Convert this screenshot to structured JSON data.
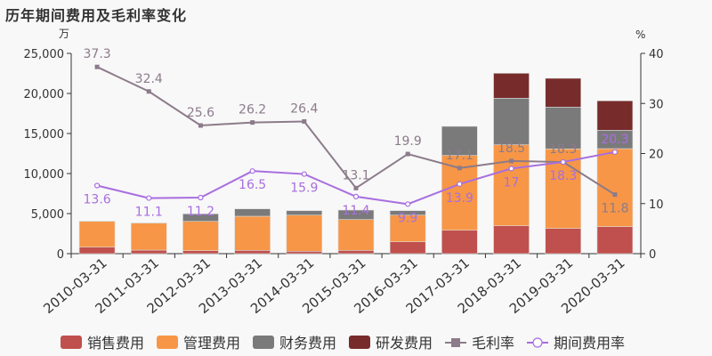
{
  "title": "历年期间费用及毛利率变化",
  "chart_data": {
    "type": "bar",
    "title": "历年期间费用及毛利率变化",
    "categories": [
      "2010-03-31",
      "2011-03-31",
      "2012-03-31",
      "2013-03-31",
      "2014-03-31",
      "2015-03-31",
      "2016-03-31",
      "2017-03-31",
      "2018-03-31",
      "2019-03-31",
      "2020-03-31"
    ],
    "y_left": {
      "unit": "万",
      "range": [
        0,
        25000
      ],
      "ticks": [
        "0",
        "5,000",
        "10,000",
        "15,000",
        "20,000",
        "25,000"
      ]
    },
    "y_right": {
      "unit": "%",
      "range": [
        0,
        40
      ],
      "ticks": [
        "0",
        "10",
        "20",
        "30",
        "40"
      ]
    },
    "stacked": true,
    "series": [
      {
        "name": "销售费用",
        "type": "bar",
        "color": "#c0504d",
        "values": [
          810,
          440,
          370,
          410,
          300,
          410,
          1480,
          2920,
          3480,
          3150,
          3370
        ]
      },
      {
        "name": "管理费用",
        "type": "bar",
        "color": "#f79646",
        "values": [
          3220,
          3370,
          3660,
          4260,
          4510,
          3850,
          3330,
          9340,
          10110,
          9930,
          9740
        ]
      },
      {
        "name": "财务费用",
        "type": "bar",
        "color": "#7a7a7a",
        "values": [
          50,
          30,
          940,
          920,
          560,
          1180,
          560,
          3630,
          5820,
          5220,
          2300
        ]
      },
      {
        "name": "研发费用",
        "type": "bar",
        "color": "#772b2b",
        "values": [
          0,
          0,
          0,
          0,
          0,
          0,
          0,
          0,
          3110,
          3590,
          3670
        ]
      },
      {
        "name": "毛利率",
        "type": "line",
        "axis": "right",
        "color": "#8c7b8a",
        "marker": "square",
        "values": [
          37.3,
          32.4,
          25.6,
          26.2,
          26.4,
          13.1,
          19.9,
          17.1,
          18.5,
          18.3,
          11.8
        ]
      },
      {
        "name": "期间费用率",
        "type": "line",
        "axis": "right",
        "color": "#a86ee0",
        "marker": "circle",
        "values": [
          13.6,
          11.1,
          11.2,
          16.5,
          15.9,
          11.4,
          9.9,
          13.9,
          17,
          18.3,
          20.3
        ]
      }
    ],
    "legend": "bottom",
    "grid": false
  }
}
